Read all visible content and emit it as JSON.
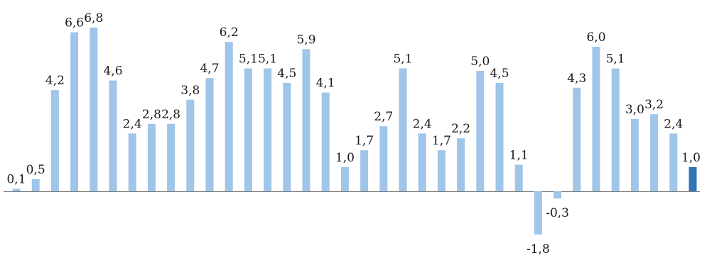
{
  "chart_data": {
    "type": "bar",
    "categories": [],
    "values": [
      0.1,
      0.5,
      4.2,
      6.6,
      6.8,
      4.6,
      2.4,
      2.8,
      2.8,
      3.8,
      4.7,
      6.2,
      5.1,
      5.1,
      4.5,
      5.9,
      4.1,
      1.0,
      1.7,
      2.7,
      5.1,
      2.4,
      1.7,
      2.2,
      5.0,
      4.5,
      1.1,
      -1.8,
      -0.3,
      4.3,
      6.0,
      5.1,
      3.0,
      3.2,
      2.4,
      1.0
    ],
    "labels": [
      "0,1",
      "0,5",
      "4,2",
      "6,6",
      "6,8",
      "4,6",
      "2,4",
      "2,8",
      "2,8",
      "3,8",
      "4,7",
      "6,2",
      "5,1",
      "5,1",
      "4,5",
      "5,9",
      "4,1",
      "1,0",
      "1,7",
      "2,7",
      "5,1",
      "2,4",
      "1,7",
      "2,2",
      "5,0",
      "4,5",
      "1,1",
      "-1,8",
      "-0,3",
      "4,3",
      "6,0",
      "5,1",
      "3,0",
      "3,2",
      "2,4",
      "1,0"
    ],
    "title": "",
    "xlabel": "",
    "ylabel": "",
    "ylim": [
      -1.8,
      6.8
    ],
    "grid": false,
    "legend": "none",
    "colors": {
      "bar": "#9fc5e8",
      "highlight": "#2e75b6",
      "axis": "#7f7f7f",
      "label": "#1a1a1a"
    },
    "highlight_index": 35
  }
}
